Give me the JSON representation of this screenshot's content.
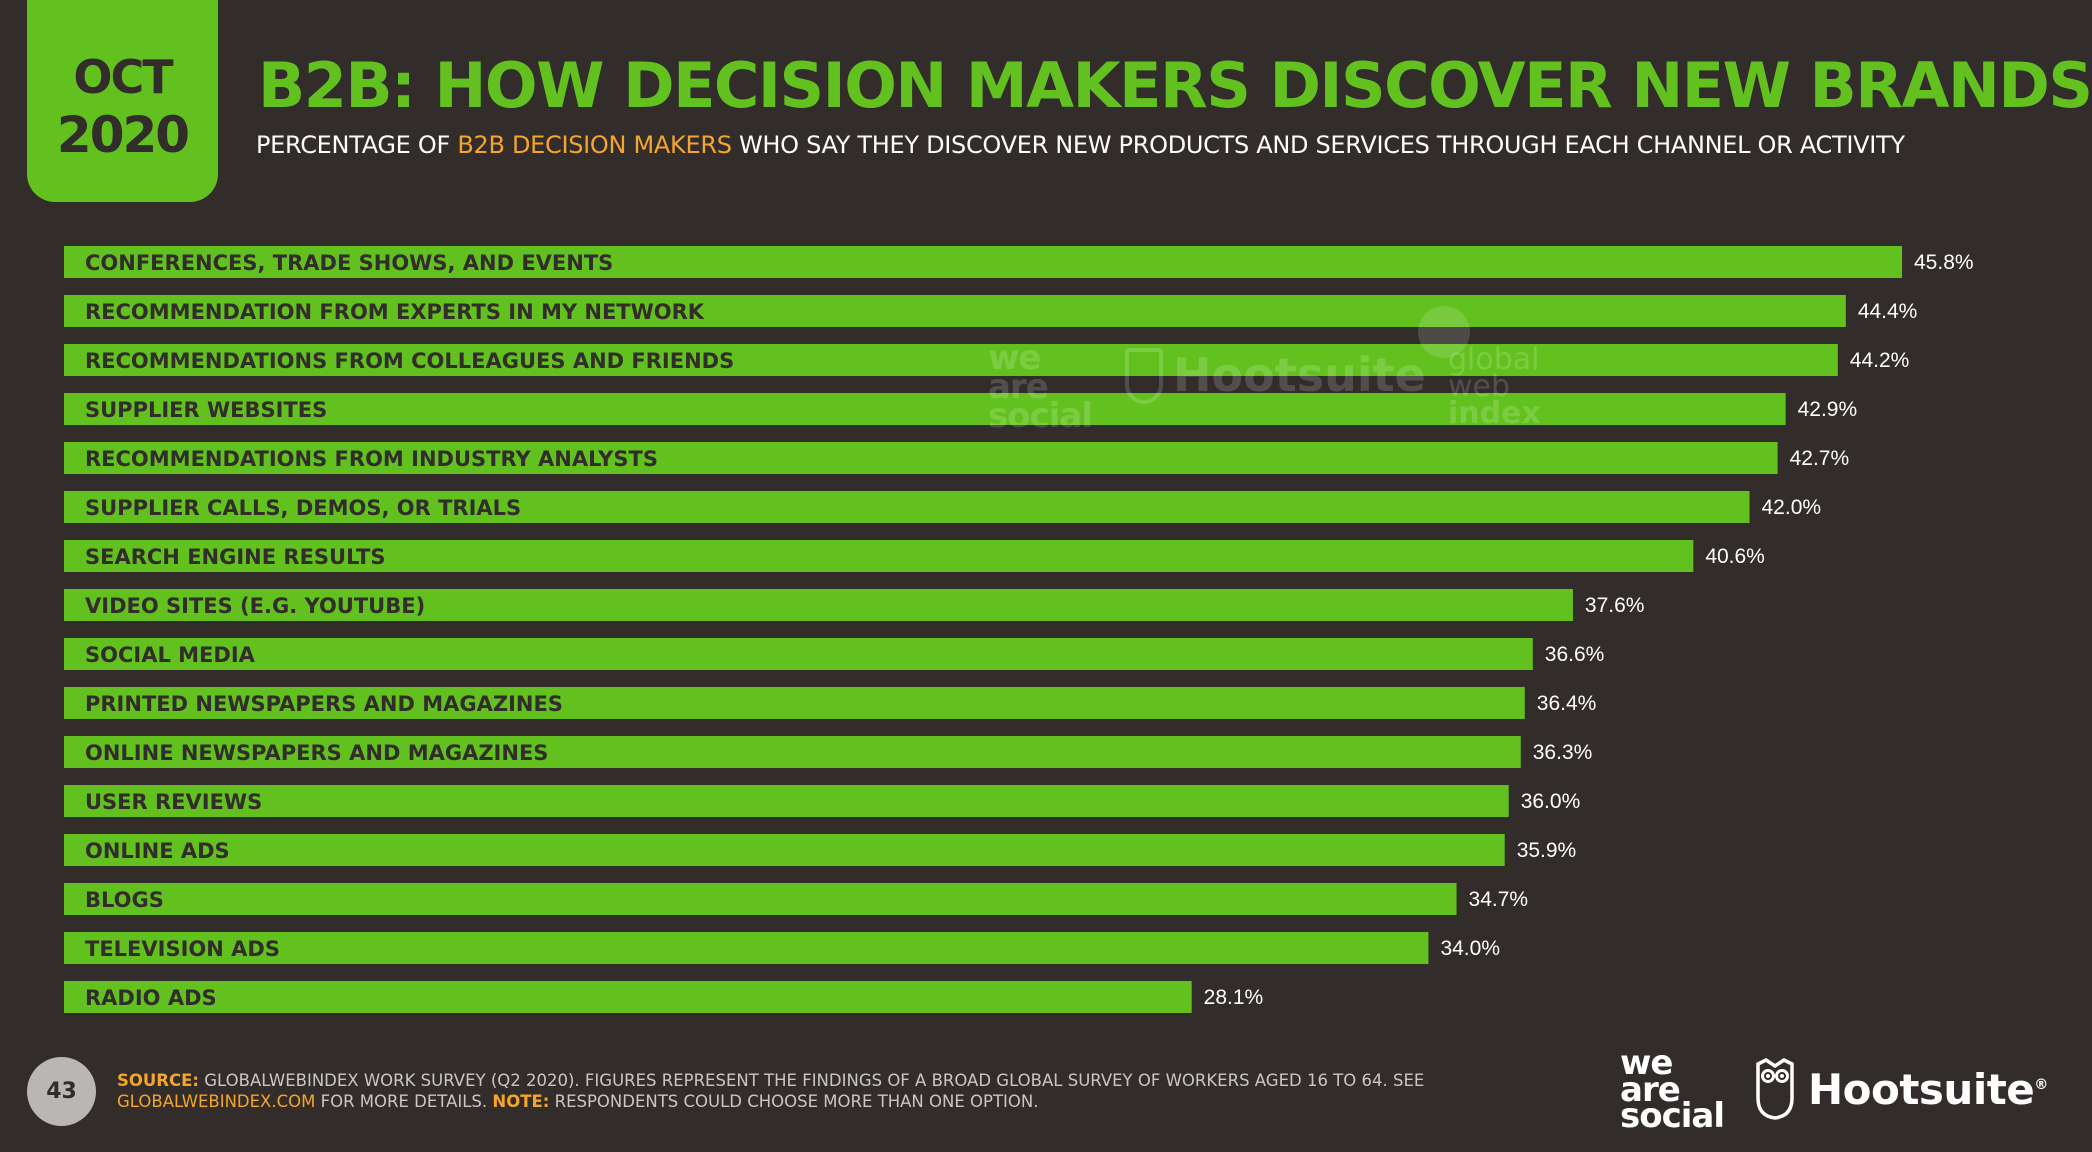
{
  "badge": {
    "month": "OCT",
    "year": "2020"
  },
  "header": {
    "title": "B2B: HOW DECISION MAKERS DISCOVER NEW BRANDS",
    "subtitle_pre": "PERCENTAGE OF ",
    "subtitle_highlight": "B2B DECISION MAKERS",
    "subtitle_post": " WHO SAY THEY DISCOVER NEW PRODUCTS AND SERVICES THROUGH EACH CHANNEL OR ACTIVITY"
  },
  "colors": {
    "background": "#322d2b",
    "bar": "#62c11f",
    "accent": "#f5a42c",
    "bar_label": "#322d2b",
    "value_label": "#ffffff"
  },
  "chart_data": {
    "type": "bar",
    "orientation": "horizontal",
    "title": "B2B: HOW DECISION MAKERS DISCOVER NEW BRANDS",
    "xlabel": "",
    "ylabel": "",
    "xlim": [
      0,
      45.8
    ],
    "unit": "%",
    "categories": [
      "CONFERENCES, TRADE SHOWS, AND EVENTS",
      "RECOMMENDATION FROM EXPERTS IN MY NETWORK",
      "RECOMMENDATIONS FROM COLLEAGUES AND FRIENDS",
      "SUPPLIER WEBSITES",
      "RECOMMENDATIONS FROM INDUSTRY ANALYSTS",
      "SUPPLIER CALLS, DEMOS, OR TRIALS",
      "SEARCH ENGINE RESULTS",
      "VIDEO SITES (E.G. YOUTUBE)",
      "SOCIAL MEDIA",
      "PRINTED NEWSPAPERS AND MAGAZINES",
      "ONLINE NEWSPAPERS AND MAGAZINES",
      "USER REVIEWS",
      "ONLINE ADS",
      "BLOGS",
      "TELEVISION ADS",
      "RADIO ADS"
    ],
    "values": [
      45.8,
      44.4,
      44.2,
      42.9,
      42.7,
      42.0,
      40.6,
      37.6,
      36.6,
      36.4,
      36.3,
      36.0,
      35.9,
      34.7,
      34.0,
      28.1
    ],
    "value_labels": [
      "45.8%",
      "44.4%",
      "44.2%",
      "42.9%",
      "42.7%",
      "42.0%",
      "40.6%",
      "37.6%",
      "36.6%",
      "36.4%",
      "36.3%",
      "36.0%",
      "35.9%",
      "34.7%",
      "34.0%",
      "28.1%"
    ]
  },
  "watermark": {
    "weare": [
      "we",
      "are",
      "social"
    ],
    "hootsuite": "Hootsuite",
    "gwi": [
      "global",
      "web",
      "index"
    ]
  },
  "footer": {
    "page_number": "43",
    "source_label": "SOURCE:",
    "source_text": " GLOBALWEBINDEX WORK SURVEY (Q2 2020). FIGURES REPRESENT THE FINDINGS OF A BROAD GLOBAL SURVEY OF WORKERS AGED 16 TO 64. SEE ",
    "source_link": "GLOBALWEBINDEX.COM",
    "source_text2": " FOR MORE DETAILS. ",
    "note_label": "NOTE:",
    "note_text": " RESPONDENTS COULD CHOOSE MORE THAN ONE OPTION."
  },
  "logos": {
    "weare": [
      "we",
      "are",
      "social"
    ],
    "hootsuite": "Hootsuite",
    "trademark": "®"
  }
}
